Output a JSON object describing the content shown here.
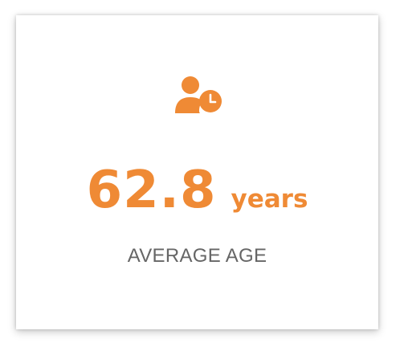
{
  "colors": {
    "accent": "#ef8a35",
    "caption": "#666666",
    "card_bg": "#ffffff"
  },
  "stat_card": {
    "icon": "user-clock-icon",
    "value": "62.8",
    "unit": "years",
    "caption": "AVERAGE AGE"
  }
}
